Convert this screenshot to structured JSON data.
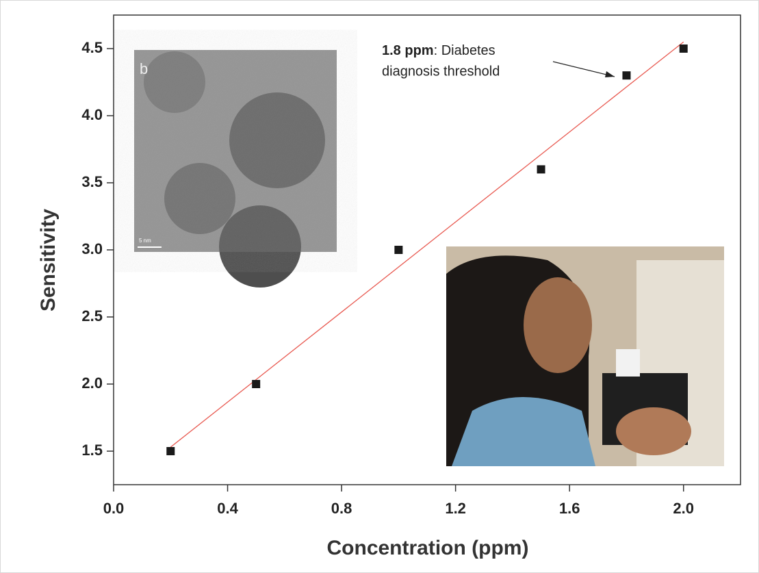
{
  "chart_data": {
    "type": "scatter",
    "x_label": "Concentration (ppm)",
    "y_label": "Sensitivity",
    "x": [
      0.2,
      0.5,
      1.0,
      1.5,
      1.8,
      2.0
    ],
    "values": [
      1.5,
      2.0,
      3.0,
      3.6,
      4.3,
      4.5
    ],
    "color": "#1a1a1a",
    "fit_line": {
      "x": [
        0.2,
        2.0
      ],
      "values": [
        1.53,
        4.55
      ],
      "color": "#e8584f"
    },
    "xlim": [
      0,
      2.2
    ],
    "ylim": [
      1.25,
      4.75
    ],
    "xticks": [
      {
        "value": 0,
        "label": "0.0"
      },
      0.4,
      0.8,
      1.2,
      1.6,
      {
        "value": 2,
        "label": "2.0"
      }
    ],
    "yticks": [
      1.5,
      {
        "value": 2,
        "label": "2.0"
      },
      2.5,
      {
        "value": 3,
        "label": "3.0"
      },
      3.5,
      {
        "value": 4,
        "label": "4.0"
      },
      4.5
    ],
    "annotation": {
      "bold": "1.8 ppm",
      "text": ": Diabetes",
      "line2": "diagnosis threshold"
    },
    "insets": {
      "tem_label": "b",
      "scale_bar": "5 nm"
    }
  }
}
